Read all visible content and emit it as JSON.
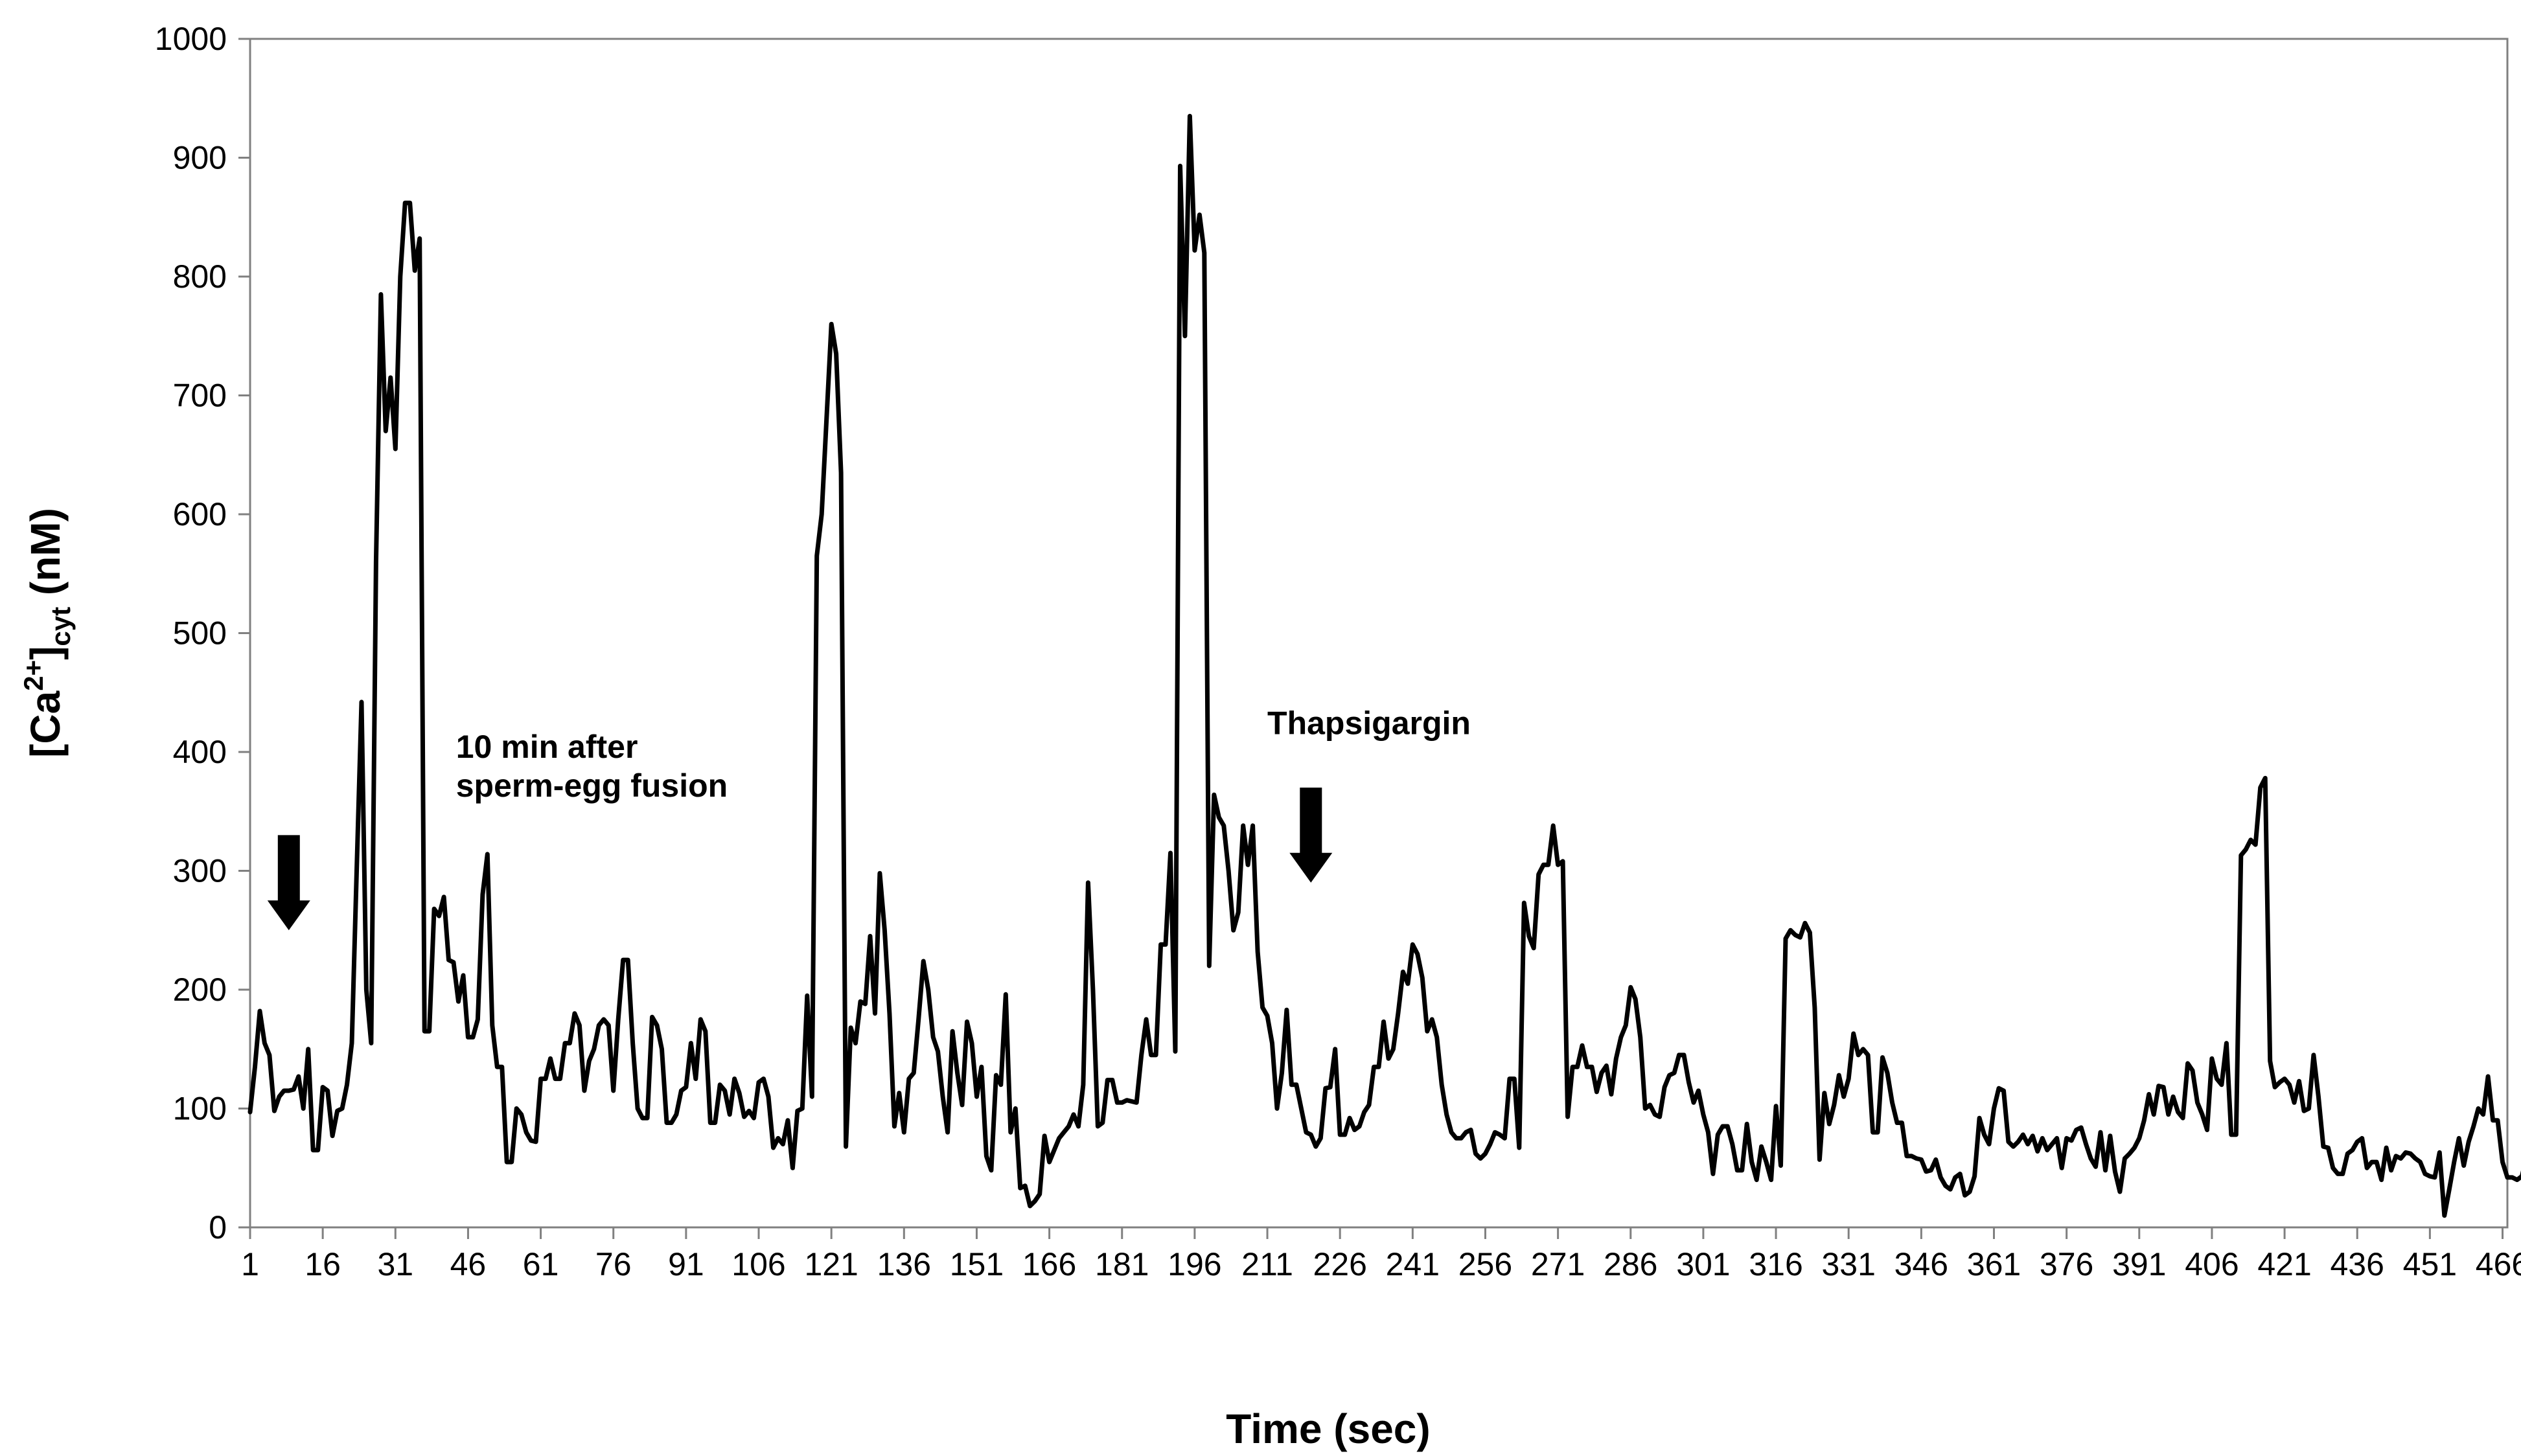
{
  "chart_data": {
    "type": "line",
    "title": "",
    "xlabel": "Time (sec)",
    "ylabel": {
      "prefix": "[Ca",
      "sup": "2+",
      "mid": "]",
      "sub": "cyt",
      "suffix": " (nM)"
    },
    "ylim": [
      0,
      1000
    ],
    "yticks": [
      0,
      100,
      200,
      300,
      400,
      500,
      600,
      700,
      800,
      900,
      1000
    ],
    "xlim": [
      1,
      467
    ],
    "xticks": [
      1,
      16,
      31,
      46,
      61,
      76,
      91,
      106,
      121,
      136,
      151,
      166,
      181,
      196,
      211,
      226,
      241,
      256,
      271,
      286,
      301,
      316,
      331,
      346,
      361,
      376,
      391,
      406,
      421,
      436,
      451,
      466
    ],
    "grid": false,
    "legend": "none",
    "line_color": "#000000",
    "annotations": [
      {
        "type": "arrow",
        "x": 9,
        "y_top": 330,
        "y_tip": 250
      },
      {
        "type": "text",
        "lines": [
          "10 min after",
          "sperm-egg fusion"
        ],
        "x": 43.5,
        "y": 395
      },
      {
        "type": "text",
        "lines": [
          "Thapsigargin"
        ],
        "x": 211,
        "y": 415
      },
      {
        "type": "arrow",
        "x": 220,
        "y_top": 370,
        "y_tip": 290
      }
    ],
    "series": [
      {
        "values": [
          97,
          135,
          182,
          155,
          145,
          98,
          110,
          115,
          115,
          116,
          127,
          100,
          150,
          65,
          65,
          118,
          115,
          77,
          98,
          100,
          120,
          155,
          300,
          442,
          200,
          155,
          560,
          785,
          670,
          715,
          655,
          800,
          862,
          862,
          805,
          832,
          165,
          165,
          268,
          262,
          278,
          225,
          223,
          190,
          212,
          160,
          160,
          175,
          280,
          314,
          170,
          135,
          135,
          55,
          55,
          100,
          95,
          80,
          73,
          72,
          125,
          125,
          142,
          125,
          125,
          155,
          155,
          180,
          170,
          115,
          140,
          150,
          170,
          175,
          170,
          115,
          175,
          225,
          225,
          155,
          100,
          92,
          92,
          177,
          170,
          150,
          88,
          88,
          95,
          115,
          118,
          155,
          125,
          175,
          165,
          88,
          88,
          120,
          115,
          95,
          125,
          113,
          93,
          98,
          92,
          122,
          125,
          110,
          67,
          75,
          70,
          90,
          50,
          98,
          100,
          195,
          110,
          565,
          600,
          680,
          760,
          735,
          635,
          68,
          168,
          155,
          190,
          188,
          245,
          180,
          298,
          250,
          180,
          85,
          113,
          80,
          125,
          130,
          175,
          224,
          200,
          160,
          148,
          110,
          80,
          165,
          130,
          103,
          173,
          155,
          110,
          135,
          60,
          48,
          128,
          120,
          196,
          80,
          100,
          33,
          35,
          18,
          22,
          28,
          77,
          55,
          65,
          75,
          80,
          85,
          95,
          85,
          120,
          290,
          200,
          85,
          88,
          124,
          124,
          105,
          105,
          107,
          106,
          105,
          145,
          175,
          145,
          145,
          238,
          238,
          315,
          148,
          893,
          750,
          935,
          822,
          852,
          820,
          220,
          364,
          345,
          338,
          300,
          250,
          265,
          338,
          305,
          338,
          232,
          185,
          178,
          155,
          100,
          130,
          183,
          120,
          120,
          100,
          80,
          78,
          68,
          75,
          117,
          118,
          150,
          78,
          78,
          92,
          82,
          85,
          97,
          103,
          135,
          135,
          173,
          142,
          150,
          180,
          215,
          205,
          238,
          230,
          210,
          165,
          175,
          160,
          120,
          95,
          80,
          75,
          75,
          80,
          82,
          62,
          58,
          62,
          70,
          80,
          78,
          75,
          125,
          125,
          67,
          273,
          245,
          235,
          297,
          305,
          305,
          338,
          305,
          308,
          93,
          135,
          135,
          153,
          135,
          135,
          114,
          130,
          136,
          112,
          142,
          160,
          170,
          202,
          192,
          160,
          100,
          103,
          95,
          93,
          118,
          128,
          130,
          145,
          145,
          122,
          105,
          115,
          95,
          80,
          45,
          78,
          85,
          85,
          70,
          48,
          48,
          87,
          55,
          40,
          68,
          55,
          40,
          102,
          52,
          243,
          250,
          246,
          244,
          256,
          248,
          185,
          57,
          113,
          87,
          103,
          128,
          110,
          125,
          163,
          145,
          150,
          145,
          80,
          80,
          143,
          130,
          105,
          88,
          88,
          60,
          60,
          58,
          57,
          47,
          48,
          57,
          42,
          35,
          32,
          42,
          45,
          27,
          30,
          43,
          92,
          78,
          70,
          100,
          117,
          115,
          72,
          68,
          72,
          78,
          70,
          77,
          64,
          75,
          65,
          70,
          75,
          50,
          75,
          73,
          82,
          84,
          70,
          58,
          51,
          80,
          48,
          77,
          47,
          30,
          58,
          62,
          67,
          75,
          90,
          112,
          95,
          119,
          118,
          95,
          110,
          97,
          92,
          138,
          132,
          105,
          95,
          82,
          142,
          125,
          120,
          155,
          78,
          78,
          313,
          318,
          326,
          322,
          370,
          378,
          140,
          118,
          122,
          125,
          120,
          105,
          123,
          98,
          100,
          145,
          110,
          68,
          67,
          50,
          45,
          45,
          62,
          65,
          72,
          75,
          50,
          55,
          55,
          40,
          67,
          48,
          60,
          58,
          63,
          62,
          58,
          55,
          45,
          43,
          42,
          63,
          10,
          32,
          55,
          75,
          52,
          72,
          85,
          100,
          95,
          127,
          90,
          90,
          55,
          42,
          42,
          40,
          43,
          60,
          55,
          40,
          25,
          40,
          43,
          48,
          85,
          92,
          93
        ]
      }
    ]
  }
}
